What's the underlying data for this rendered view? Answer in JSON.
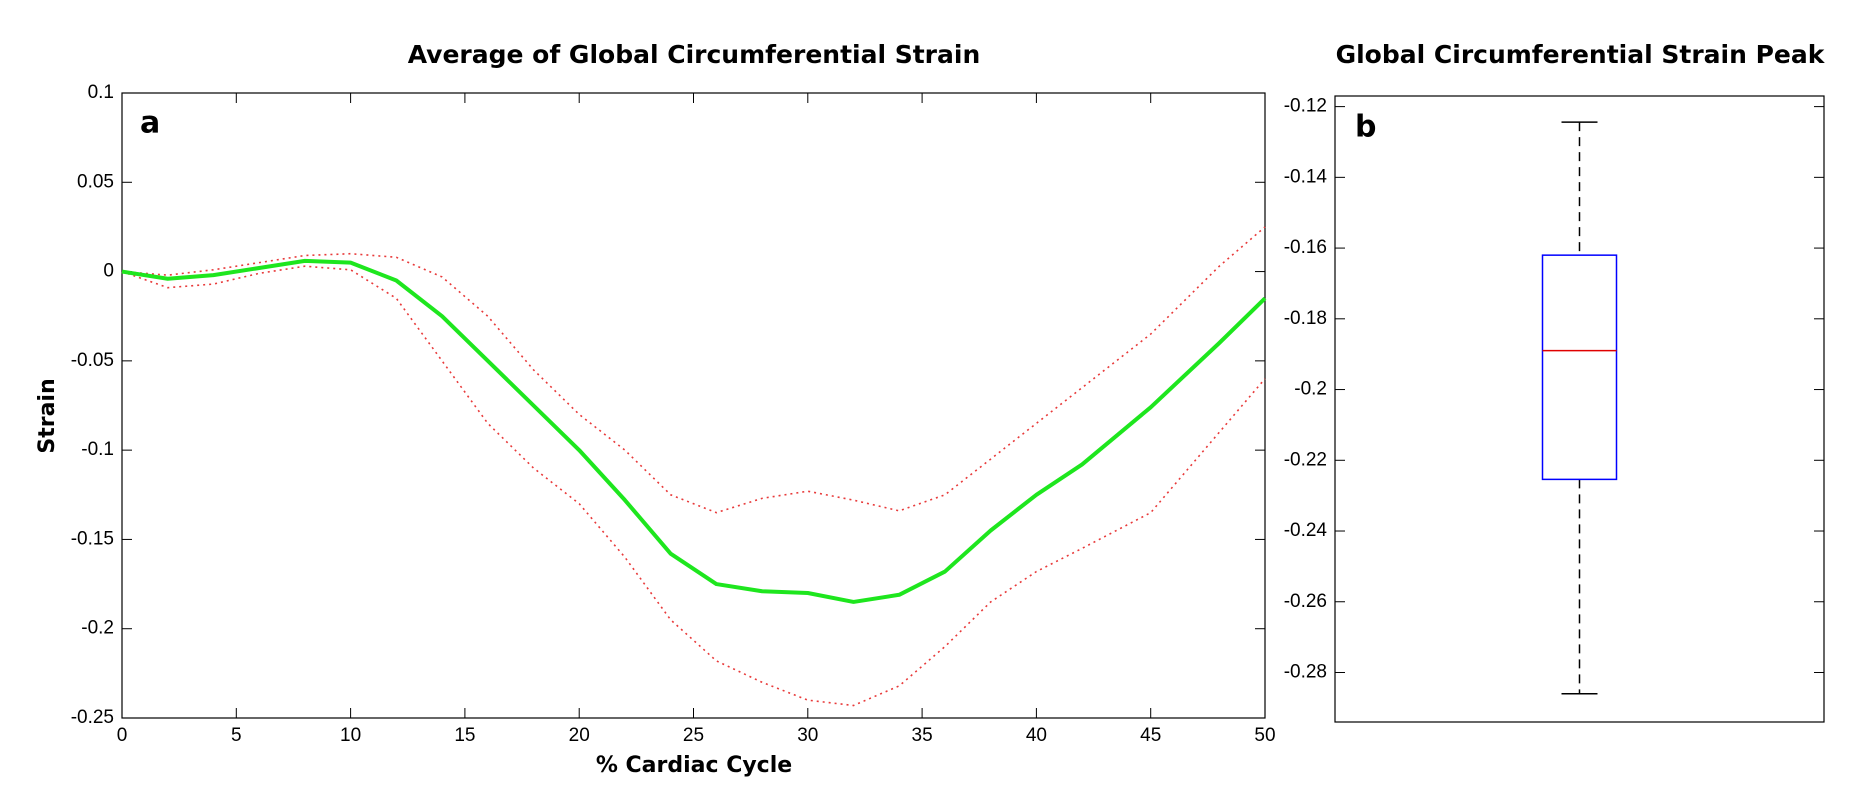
{
  "chart_data": [
    {
      "type": "line",
      "title": "Average of Global Circumferential Strain",
      "annotation": "a",
      "xlabel": "% Cardiac Cycle",
      "ylabel": "Strain",
      "x": [
        0,
        2,
        4,
        6,
        8,
        10,
        12,
        14,
        16,
        18,
        20,
        22,
        24,
        26,
        28,
        30,
        32,
        34,
        36,
        38,
        40,
        42,
        45,
        48,
        50
      ],
      "series": [
        {
          "color": "#e83a3a",
          "style": "dotted",
          "values": [
            0,
            -0.002,
            0.001,
            0.005,
            0.009,
            0.01,
            0.008,
            -0.003,
            -0.025,
            -0.055,
            -0.08,
            -0.1,
            -0.125,
            -0.135,
            -0.127,
            -0.123,
            -0.128,
            -0.134,
            -0.125,
            -0.105,
            -0.085,
            -0.065,
            -0.035,
            0.003,
            0.025
          ]
        },
        {
          "color": "#e83a3a",
          "style": "dotted",
          "values": [
            0,
            -0.009,
            -0.007,
            -0.001,
            0.003,
            0.001,
            -0.015,
            -0.05,
            -0.085,
            -0.11,
            -0.13,
            -0.16,
            -0.195,
            -0.218,
            -0.23,
            -0.24,
            -0.243,
            -0.232,
            -0.21,
            -0.185,
            -0.168,
            -0.155,
            -0.135,
            -0.09,
            -0.06
          ]
        },
        {
          "color": "#1ee61e",
          "style": "solid",
          "values": [
            0,
            -0.004,
            -0.002,
            0.002,
            0.006,
            0.005,
            -0.005,
            -0.025,
            -0.05,
            -0.075,
            -0.1,
            -0.128,
            -0.158,
            -0.175,
            -0.179,
            -0.18,
            -0.185,
            -0.181,
            -0.168,
            -0.145,
            -0.125,
            -0.108,
            -0.076,
            -0.04,
            -0.015
          ]
        }
      ],
      "xlim": [
        0,
        50
      ],
      "xticks": [
        0,
        5,
        10,
        15,
        20,
        25,
        30,
        35,
        40,
        45,
        50
      ],
      "ylim": [
        -0.25,
        0.1
      ],
      "yticks": [
        0.1,
        0.05,
        0,
        -0.05,
        -0.1,
        -0.15,
        -0.2,
        -0.25
      ]
    },
    {
      "type": "box",
      "title": "Global Circumferential Strain Peak",
      "annotation": "b",
      "box": {
        "whisker_high": -0.1244,
        "q3": -0.162,
        "median": -0.189,
        "q1": -0.2254,
        "whisker_low": -0.286
      },
      "box_color": "#0000ff",
      "median_color": "#e00000",
      "ylim": [
        -0.294,
        -0.117
      ],
      "yticks": [
        -0.12,
        -0.14,
        -0.16,
        -0.18,
        -0.2,
        -0.22,
        -0.24,
        -0.26,
        -0.28
      ]
    }
  ]
}
